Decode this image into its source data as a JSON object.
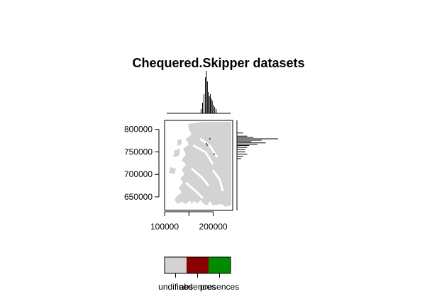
{
  "chart_data": {
    "type": "heatmap",
    "title": "Chequered.Skipper datasets",
    "xlabel": "",
    "ylabel": "",
    "xlim": [
      100000,
      240000
    ],
    "ylim": [
      620000,
      820000
    ],
    "x_ticks": [
      100000,
      150000,
      200000
    ],
    "y_ticks": [
      650000,
      700000,
      750000,
      800000
    ],
    "x_tick_labels": [
      "100000",
      "",
      "200000"
    ],
    "y_tick_labels": [
      "650000",
      "700000",
      "750000",
      "800000"
    ],
    "grid": false,
    "legend": {
      "placement": "bottom",
      "categories": [
        {
          "label": "undifined",
          "color": "#d3d3d3"
        },
        {
          "label": "absences",
          "color": "#8b0000"
        },
        {
          "label": "presences",
          "color": "#008b00"
        }
      ]
    },
    "presence_points": [
      {
        "x": 193000,
        "y": 779000
      },
      {
        "x": 186000,
        "y": 768000
      },
      {
        "x": 188000,
        "y": 765000
      },
      {
        "x": 202000,
        "y": 745000
      }
    ],
    "top_histogram": {
      "x": [
        175000,
        178000,
        181000,
        184000,
        186000,
        188000,
        190000,
        192000,
        194000,
        196000,
        198000,
        200000,
        203000,
        206000
      ],
      "counts": [
        2,
        5,
        9,
        17,
        20,
        15,
        10,
        8,
        9,
        7,
        6,
        4,
        3,
        2
      ]
    },
    "right_histogram": {
      "y": [
        792000,
        785000,
        782000,
        779000,
        776000,
        773000,
        770000,
        767000,
        764000,
        760000,
        755000,
        750000,
        745000,
        740000,
        735000
      ],
      "counts": [
        3,
        5,
        8,
        20,
        12,
        7,
        14,
        10,
        6,
        5,
        4,
        4,
        5,
        3,
        2
      ]
    }
  }
}
